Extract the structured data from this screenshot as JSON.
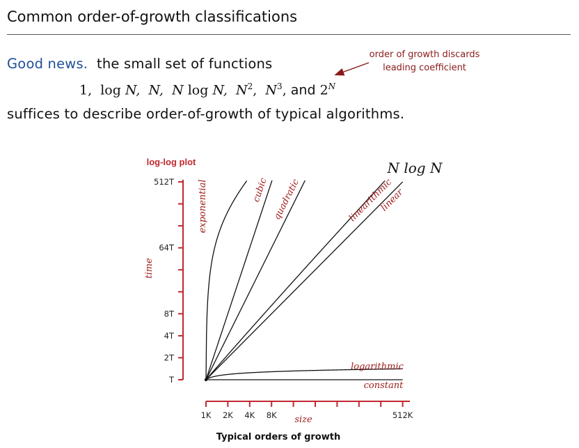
{
  "title": "Common order-of-growth classifications",
  "good_news": "Good news.",
  "line1_rest": "the small set of functions",
  "functions_line": {
    "one": "1,",
    "logN_a": "log",
    "logN_b": "N,",
    "N": "N,",
    "NlogN_a": "N",
    "NlogN_b": "log",
    "NlogN_c": "N,",
    "N2": "N",
    "N2_exp": "2",
    "N2_comma": ",",
    "N3": "N",
    "N3_exp": "3",
    "N3_comma": ",",
    "and": "and",
    "two": "2",
    "two_exp": "N"
  },
  "line3": "suffices to describe order-of-growth of typical algorithms.",
  "note": {
    "line1": "order of growth discards",
    "line2": "leading coefficient"
  },
  "caption": "Typical orders of growth",
  "chart_data": {
    "type": "line",
    "title": "log-log plot",
    "xlabel": "size",
    "ylabel": "time",
    "x_tick_labels": [
      "1K",
      "2K",
      "4K",
      "8K",
      "",
      "",
      "",
      "",
      "",
      "512K"
    ],
    "y_tick_labels": [
      "T",
      "2T",
      "4T",
      "8T",
      "",
      "",
      "64T",
      "",
      "",
      "512T"
    ],
    "x_log2_range": [
      0,
      9
    ],
    "y_log2_range": [
      0,
      9
    ],
    "big_label": "N log N",
    "series": [
      {
        "name": "exponential",
        "kind": "exp"
      },
      {
        "name": "cubic",
        "slope": 3
      },
      {
        "name": "quadratic",
        "slope": 2
      },
      {
        "name": "linearithmic",
        "kind": "nlogn"
      },
      {
        "name": "linear",
        "slope": 1
      },
      {
        "name": "logarithmic",
        "kind": "log"
      },
      {
        "name": "constant",
        "slope": 0
      }
    ],
    "colors": {
      "axis": "#c0282d",
      "curve": "#111111",
      "label": "#a01c1c"
    }
  }
}
